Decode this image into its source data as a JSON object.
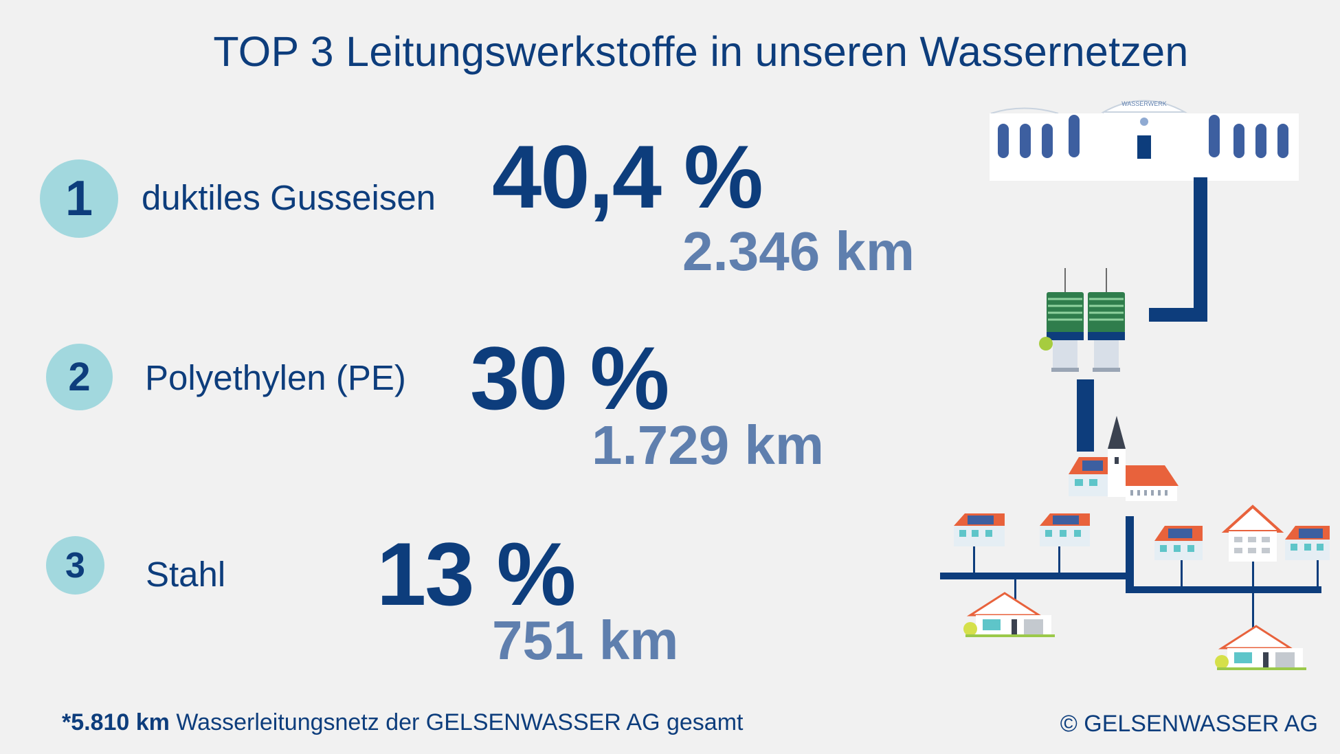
{
  "title": "TOP 3 Leitungswerkstoffe in unseren Wassernetzen",
  "items": [
    {
      "rank": "1",
      "material": "duktiles Gusseisen",
      "percent": "40,4 %",
      "km": "2.346 km"
    },
    {
      "rank": "2",
      "material": "Polyethylen (PE)",
      "percent": "30 %",
      "km": "1.729 km"
    },
    {
      "rank": "3",
      "material": "Stahl",
      "percent": "13 %",
      "km": "751 km"
    }
  ],
  "footnote": {
    "bold": "*5.810 km",
    "text": " Wasserleitungsnetz der GELSENWASSER AG gesamt"
  },
  "copyright": "© GELSENWASSER AG",
  "illustration": {
    "waterworks_sign": "WASSERWERK",
    "pipe_color": "#0d3d7c",
    "roof_color": "#e8623c",
    "accent_teal": "#5ec5c9"
  }
}
